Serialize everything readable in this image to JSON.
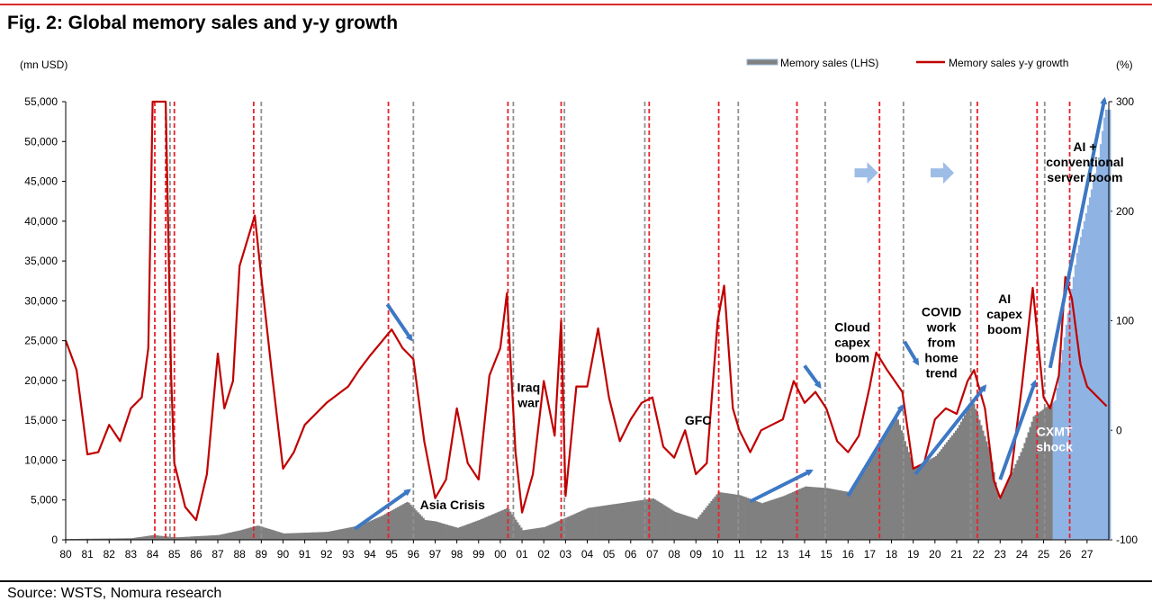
{
  "header": {
    "title": "Fig. 2: Global memory sales and y-y growth"
  },
  "footer": {
    "source": "Source: WSTS, Nomura research"
  },
  "chart_data": {
    "type": "bar+line",
    "left_axis": {
      "label": "(mn USD)",
      "min": 0,
      "max": 55000,
      "ticks": [
        "0",
        "5,000",
        "10,000",
        "15,000",
        "20,000",
        "25,000",
        "30,000",
        "35,000",
        "40,000",
        "45,000",
        "50,000",
        "55,000"
      ]
    },
    "right_axis": {
      "label": "(%)",
      "min": -100,
      "max": 300,
      "ticks": [
        "-100",
        "0",
        "100",
        "200",
        "300"
      ]
    },
    "x_axis": {
      "start": 1980,
      "end": 2028,
      "labels": [
        "80",
        "81",
        "82",
        "83",
        "84",
        "85",
        "86",
        "87",
        "88",
        "89",
        "90",
        "91",
        "92",
        "93",
        "94",
        "95",
        "96",
        "97",
        "98",
        "99",
        "00",
        "01",
        "02",
        "03",
        "04",
        "05",
        "06",
        "07",
        "08",
        "09",
        "10",
        "11",
        "12",
        "13",
        "14",
        "15",
        "16",
        "17",
        "18",
        "19",
        "20",
        "21",
        "22",
        "23",
        "24",
        "25",
        "26",
        "27"
      ]
    },
    "legend": [
      {
        "name": "Memory sales (LHS)",
        "color": "#808080"
      },
      {
        "name": "Memory sales y-y growth",
        "color": "#c00000"
      }
    ],
    "series": [
      {
        "name": "Memory sales (LHS)",
        "type": "bar",
        "color": "#808080",
        "forecast_color": "#8fb4e3",
        "forecast_from": 2025.4,
        "points": [
          [
            1980,
            100
          ],
          [
            1983,
            200
          ],
          [
            1984,
            600
          ],
          [
            1985,
            300
          ],
          [
            1987,
            600
          ],
          [
            1988,
            1200
          ],
          [
            1988.8,
            1800
          ],
          [
            1990,
            800
          ],
          [
            1992,
            1000
          ],
          [
            1993.5,
            1800
          ],
          [
            1994.5,
            3000
          ],
          [
            1995.7,
            4800
          ],
          [
            1996.5,
            2500
          ],
          [
            1997,
            2300
          ],
          [
            1998,
            1500
          ],
          [
            1999,
            2500
          ],
          [
            2000.3,
            4000
          ],
          [
            2001,
            1200
          ],
          [
            2002,
            1600
          ],
          [
            2003,
            2800
          ],
          [
            2004,
            4000
          ],
          [
            2006,
            4800
          ],
          [
            2007,
            5200
          ],
          [
            2008,
            3500
          ],
          [
            2009,
            2600
          ],
          [
            2010,
            6000
          ],
          [
            2011,
            5600
          ],
          [
            2012,
            4600
          ],
          [
            2013,
            5500
          ],
          [
            2014,
            6700
          ],
          [
            2015,
            6500
          ],
          [
            2016,
            6000
          ],
          [
            2017,
            10500
          ],
          [
            2018.2,
            15500
          ],
          [
            2019,
            9000
          ],
          [
            2020,
            10500
          ],
          [
            2021,
            14000
          ],
          [
            2021.7,
            17500
          ],
          [
            2022.5,
            11000
          ],
          [
            2022.9,
            5000
          ],
          [
            2023.5,
            8500
          ],
          [
            2024,
            11500
          ],
          [
            2024.5,
            15500
          ],
          [
            2025.5,
            17500
          ],
          [
            2026,
            27000
          ],
          [
            2026.5,
            36000
          ],
          [
            2027,
            42000
          ],
          [
            2027.5,
            48000
          ],
          [
            2027.8,
            54000
          ]
        ]
      },
      {
        "name": "Memory sales y-y growth",
        "type": "line",
        "color": "#c00000",
        "points": [
          [
            1980,
            82
          ],
          [
            1980.5,
            55
          ],
          [
            1981,
            -22
          ],
          [
            1981.5,
            -20
          ],
          [
            1982,
            5
          ],
          [
            1982.5,
            -10
          ],
          [
            1983,
            20
          ],
          [
            1983.5,
            30
          ],
          [
            1983.8,
            75
          ],
          [
            1984,
            300
          ],
          [
            1984.3,
            300
          ],
          [
            1984.6,
            300
          ],
          [
            1984.85,
            50
          ],
          [
            1985,
            -30
          ],
          [
            1985.5,
            -70
          ],
          [
            1986,
            -82
          ],
          [
            1986.5,
            -40
          ],
          [
            1987,
            70
          ],
          [
            1987.3,
            20
          ],
          [
            1987.7,
            45
          ],
          [
            1988,
            150
          ],
          [
            1988.7,
            196
          ],
          [
            1989,
            140
          ],
          [
            1989.5,
            50
          ],
          [
            1990,
            -35
          ],
          [
            1990.5,
            -20
          ],
          [
            1991,
            5
          ],
          [
            1991.5,
            15
          ],
          [
            1992,
            25
          ],
          [
            1993,
            40
          ],
          [
            1993.5,
            55
          ],
          [
            1994,
            68
          ],
          [
            1994.5,
            80
          ],
          [
            1995,
            92
          ],
          [
            1995.5,
            75
          ],
          [
            1996,
            65
          ],
          [
            1996.5,
            -10
          ],
          [
            1997,
            -62
          ],
          [
            1997.5,
            -45
          ],
          [
            1998,
            20
          ],
          [
            1998.5,
            -30
          ],
          [
            1999,
            -45
          ],
          [
            1999.5,
            50
          ],
          [
            2000,
            75
          ],
          [
            2000.3,
            125
          ],
          [
            2000.7,
            -20
          ],
          [
            2001,
            -75
          ],
          [
            2001.5,
            -40
          ],
          [
            2002,
            45
          ],
          [
            2002.5,
            -5
          ],
          [
            2002.8,
            100
          ],
          [
            2003,
            -60
          ],
          [
            2003.5,
            40
          ],
          [
            2004,
            40
          ],
          [
            2004.5,
            93
          ],
          [
            2005,
            30
          ],
          [
            2005.5,
            -10
          ],
          [
            2006,
            10
          ],
          [
            2006.5,
            25
          ],
          [
            2007,
            30
          ],
          [
            2007.5,
            -15
          ],
          [
            2008,
            -25
          ],
          [
            2008.5,
            0
          ],
          [
            2009,
            -40
          ],
          [
            2009.5,
            -30
          ],
          [
            2010,
            100
          ],
          [
            2010.3,
            132
          ],
          [
            2010.7,
            20
          ],
          [
            2011,
            0
          ],
          [
            2011.5,
            -20
          ],
          [
            2012,
            0
          ],
          [
            2012.5,
            5
          ],
          [
            2013,
            10
          ],
          [
            2013.5,
            45
          ],
          [
            2014,
            25
          ],
          [
            2014.5,
            35
          ],
          [
            2015,
            20
          ],
          [
            2015.5,
            -10
          ],
          [
            2016,
            -20
          ],
          [
            2016.5,
            -5
          ],
          [
            2017,
            40
          ],
          [
            2017.3,
            71
          ],
          [
            2017.8,
            55
          ],
          [
            2018.5,
            35
          ],
          [
            2019,
            -35
          ],
          [
            2019.5,
            -30
          ],
          [
            2020,
            10
          ],
          [
            2020.5,
            20
          ],
          [
            2021,
            15
          ],
          [
            2021.5,
            45
          ],
          [
            2021.8,
            55
          ],
          [
            2022.3,
            20
          ],
          [
            2022.7,
            -45
          ],
          [
            2023,
            -62
          ],
          [
            2023.5,
            -40
          ],
          [
            2024,
            40
          ],
          [
            2024.5,
            130
          ],
          [
            2025,
            30
          ],
          [
            2025.3,
            20
          ],
          [
            2025.7,
            50
          ],
          [
            2026,
            140
          ],
          [
            2026.3,
            120
          ],
          [
            2026.7,
            60
          ],
          [
            2027,
            40
          ],
          [
            2027.5,
            30
          ],
          [
            2027.9,
            22
          ]
        ]
      }
    ],
    "red_markers": [
      1984.1,
      1984.6,
      1985.0,
      1988.65,
      1994.85,
      2000.35,
      2002.8,
      2006.85,
      2010.05,
      2013.65,
      2017.45,
      2021.95,
      2024.7,
      2026.2
    ],
    "gray_markers": [
      1984.8,
      1989.0,
      1996.0,
      2000.6,
      2002.95,
      2006.65,
      2010.95,
      2014.95,
      2018.55,
      2021.65,
      2025.05
    ],
    "annotations": [
      {
        "lines": [
          "Asia Crisis"
        ],
        "x": 1997.8,
        "y": -72,
        "color": "#000000"
      },
      {
        "lines": [
          "Iraq",
          "war"
        ],
        "x": 2001.3,
        "y": 35,
        "color": "#000000"
      },
      {
        "lines": [
          "GFC"
        ],
        "x": 2009.1,
        "y": 5,
        "color": "#000000"
      },
      {
        "lines": [
          "Cloud",
          "capex",
          "boom"
        ],
        "x": 2016.2,
        "y": 90,
        "color": "#000000"
      },
      {
        "lines": [
          "COVID",
          "work",
          "from",
          "home",
          "trend"
        ],
        "x": 2020.3,
        "y": 104,
        "color": "#000000"
      },
      {
        "lines": [
          "AI",
          "capex",
          "boom"
        ],
        "x": 2023.2,
        "y": 116,
        "color": "#000000"
      },
      {
        "lines": [
          "AI +",
          "conventional",
          "server boom"
        ],
        "x": 2026.9,
        "y": 255,
        "color": "#000000"
      },
      {
        "lines": [
          "CXMT",
          "shock"
        ],
        "x": 2025.5,
        "y": -5,
        "color": "#ffffff"
      }
    ],
    "trend_arrows": [
      [
        [
          1993.3,
          -90
        ],
        [
          1995.8,
          -55
        ]
      ],
      [
        [
          1994.8,
          115
        ],
        [
          1995.9,
          83
        ]
      ],
      [
        [
          2011.5,
          -65
        ],
        [
          2014.3,
          -37
        ]
      ],
      [
        [
          2014.0,
          59
        ],
        [
          2014.7,
          40
        ]
      ],
      [
        [
          2016,
          -60
        ],
        [
          2018.5,
          22
        ]
      ],
      [
        [
          2018.6,
          81
        ],
        [
          2019.2,
          61
        ]
      ],
      [
        [
          2019.1,
          -40
        ],
        [
          2022.3,
          40
        ]
      ],
      [
        [
          2023.0,
          -45
        ],
        [
          2024.6,
          44
        ]
      ],
      [
        [
          2025.3,
          57
        ],
        [
          2027.8,
          302
        ]
      ]
    ],
    "light_arrows": [
      2016.3,
      2019.8
    ]
  }
}
